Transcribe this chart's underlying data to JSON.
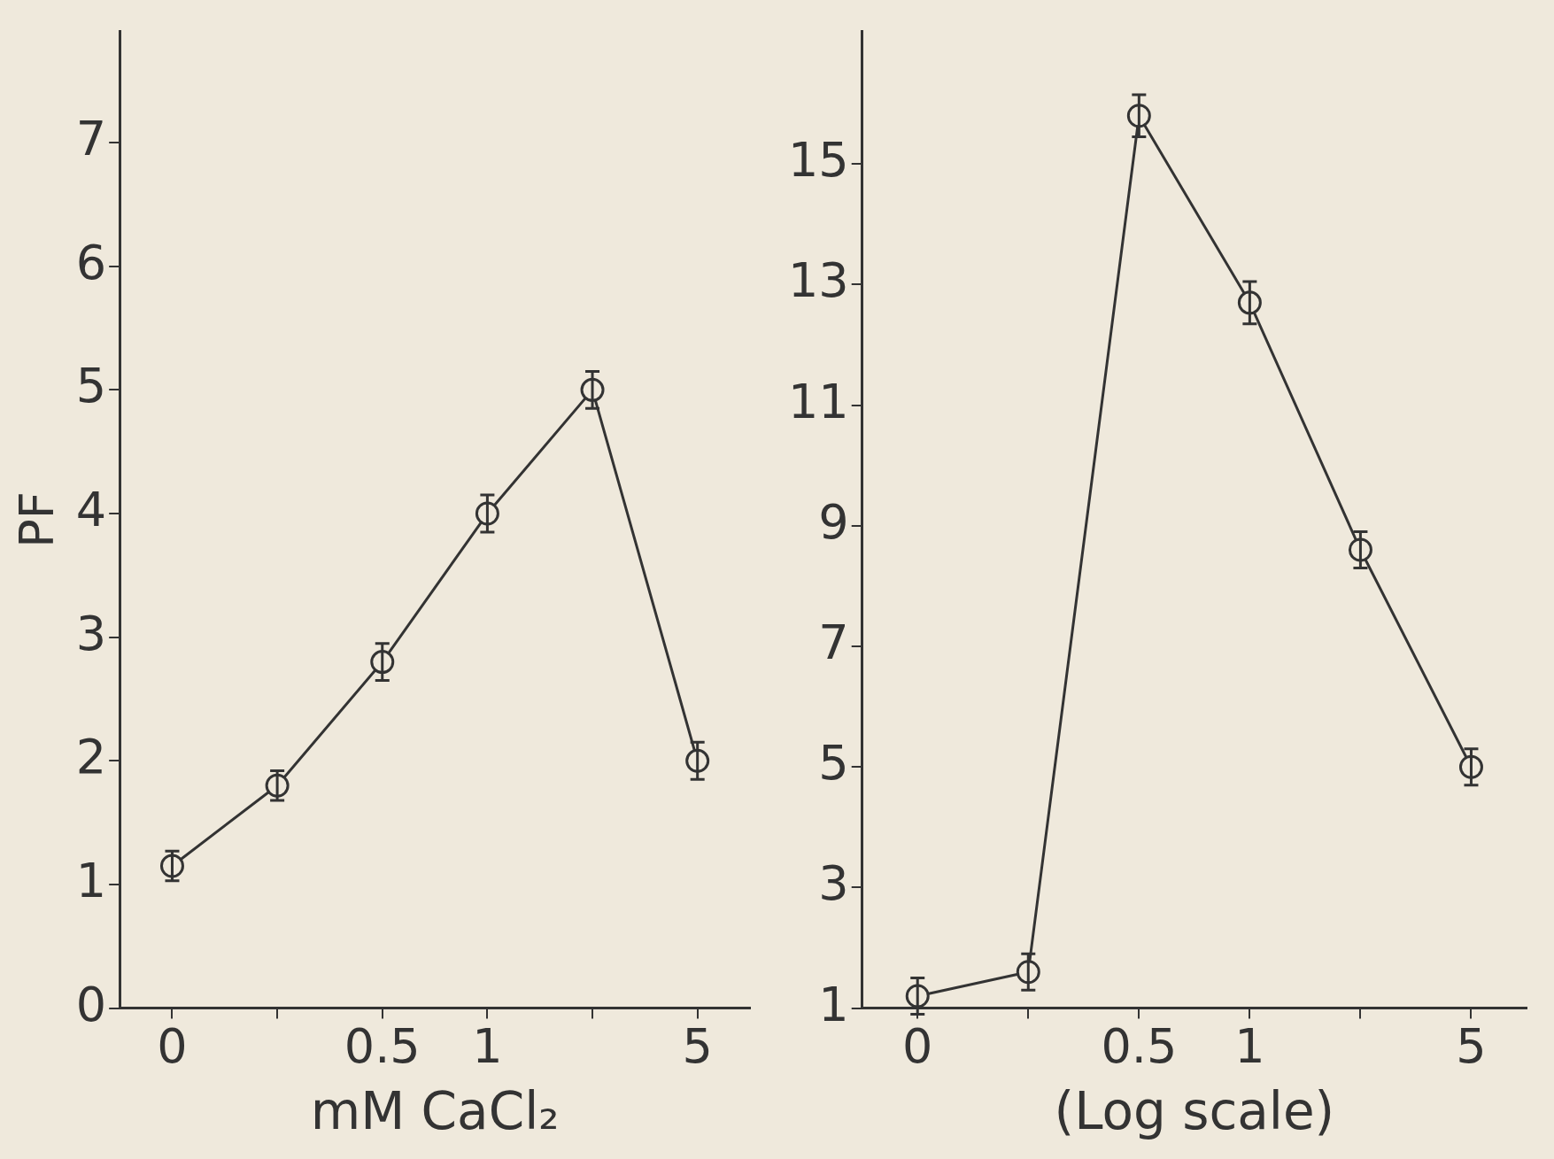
{
  "chart_data": [
    {
      "type": "line",
      "ylabel": "PF",
      "xlabel": "mM CaCl₂",
      "categories": [
        "0",
        null,
        "0.5",
        "1",
        null,
        "5"
      ],
      "series": [
        {
          "color": "#333333",
          "values": [
            1.15,
            1.8,
            2.8,
            4.0,
            5.0,
            2.0
          ],
          "errors": [
            0.12,
            0.12,
            0.15,
            0.15,
            0.15,
            0.15
          ]
        }
      ],
      "ylim": [
        0,
        7.9
      ],
      "yticks": [
        0,
        1,
        2,
        3,
        4,
        5,
        6,
        7
      ],
      "grid": false,
      "legend": false,
      "marker": "circle",
      "line_style": "solid"
    },
    {
      "type": "line",
      "xlabel": "(Log scale)",
      "categories": [
        "0",
        null,
        "0.5",
        "1",
        null,
        "5"
      ],
      "series": [
        {
          "color": "#333333",
          "values": [
            1.2,
            1.6,
            15.8,
            12.7,
            8.6,
            5.0
          ],
          "errors": [
            0.3,
            0.3,
            0.35,
            0.35,
            0.3,
            0.3
          ]
        }
      ],
      "ylim": [
        1,
        17.2
      ],
      "yticks": [
        1,
        3,
        5,
        7,
        9,
        11,
        13,
        15
      ],
      "grid": false,
      "legend": false,
      "marker": "circle",
      "line_style": "solid"
    }
  ]
}
